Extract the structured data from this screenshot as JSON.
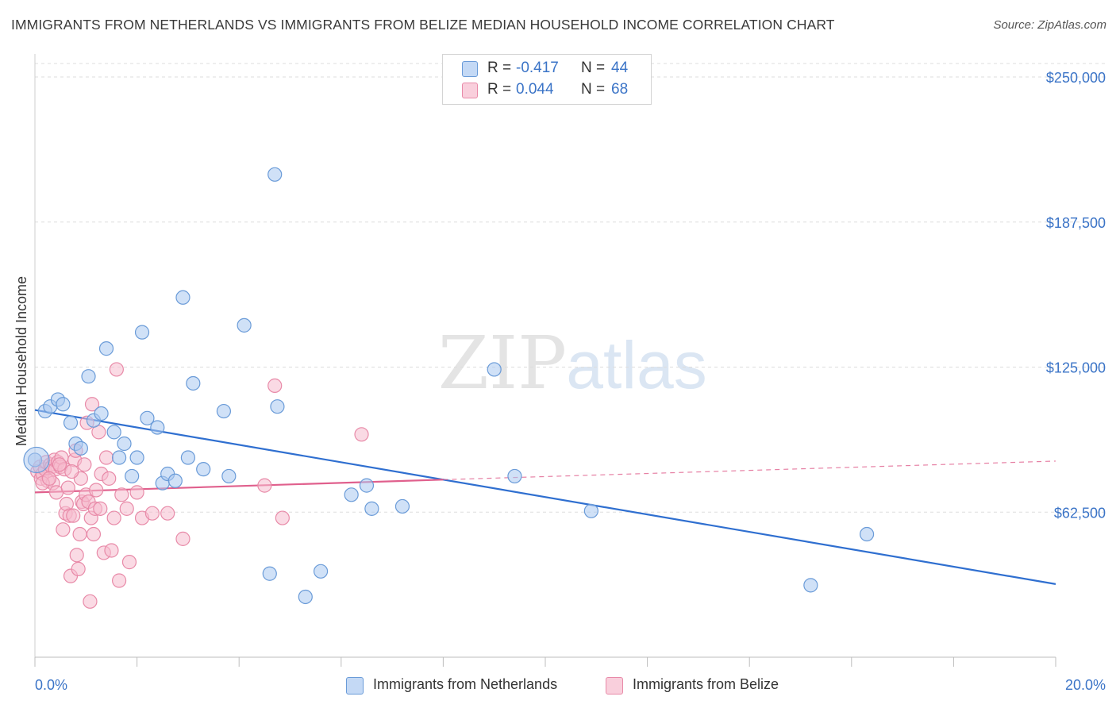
{
  "header": {
    "title": "IMMIGRANTS FROM NETHERLANDS VS IMMIGRANTS FROM BELIZE MEDIAN HOUSEHOLD INCOME CORRELATION CHART",
    "source": "Source: ZipAtlas.com"
  },
  "watermark": {
    "zip": "ZIP",
    "atlas": "atlas"
  },
  "legend": {
    "r_label": "R =",
    "n_label": "N =",
    "netherlands": {
      "r": "-0.417",
      "n": "44"
    },
    "belize": {
      "r": "0.044",
      "n": "68"
    }
  },
  "colors": {
    "netherlands_fill": "#aac8f0",
    "netherlands_stroke": "#6a9bd8",
    "netherlands_line": "#2f6fd0",
    "belize_fill": "#f6bccd",
    "belize_stroke": "#e88aa8",
    "belize_line": "#e0608d",
    "tick_label": "#3b74c7",
    "grid": "#dddddd"
  },
  "chart_data": {
    "type": "scatter",
    "title": "IMMIGRANTS FROM NETHERLANDS VS IMMIGRANTS FROM BELIZE MEDIAN HOUSEHOLD INCOME CORRELATION CHART",
    "xlabel": "",
    "ylabel": "Median Household Income",
    "xlim": [
      0,
      20
    ],
    "ylim": [
      0,
      250000
    ],
    "x_tick_labels": [
      "0.0%",
      "20.0%"
    ],
    "y_ticks": [
      62500,
      125000,
      187500,
      250000
    ],
    "y_tick_labels": [
      "$62,500",
      "$125,000",
      "$187,500",
      "$250,000"
    ],
    "grid": true,
    "legend_position": "top-center",
    "series": [
      {
        "name": "Immigrants from Netherlands",
        "color": "#6a9bd8",
        "points": [
          [
            0.0,
            85000
          ],
          [
            0.2,
            106000
          ],
          [
            0.3,
            108000
          ],
          [
            0.45,
            111000
          ],
          [
            0.55,
            109000
          ],
          [
            0.7,
            101000
          ],
          [
            0.8,
            92000
          ],
          [
            0.9,
            90000
          ],
          [
            1.05,
            121000
          ],
          [
            1.15,
            102000
          ],
          [
            1.3,
            105000
          ],
          [
            1.4,
            133000
          ],
          [
            1.55,
            97000
          ],
          [
            1.65,
            86000
          ],
          [
            1.75,
            92000
          ],
          [
            1.9,
            78000
          ],
          [
            2.0,
            86000
          ],
          [
            2.1,
            140000
          ],
          [
            2.2,
            103000
          ],
          [
            2.4,
            99000
          ],
          [
            2.5,
            75000
          ],
          [
            2.6,
            79000
          ],
          [
            2.75,
            76000
          ],
          [
            2.9,
            155000
          ],
          [
            3.0,
            86000
          ],
          [
            3.1,
            118000
          ],
          [
            3.3,
            81000
          ],
          [
            3.7,
            106000
          ],
          [
            3.8,
            78000
          ],
          [
            4.1,
            143000
          ],
          [
            4.6,
            36000
          ],
          [
            4.7,
            208000
          ],
          [
            4.75,
            108000
          ],
          [
            5.3,
            26000
          ],
          [
            5.6,
            37000
          ],
          [
            6.2,
            70000
          ],
          [
            6.5,
            74000
          ],
          [
            6.6,
            64000
          ],
          [
            7.2,
            65000
          ],
          [
            9.0,
            124000
          ],
          [
            9.4,
            78000
          ],
          [
            10.9,
            63000
          ],
          [
            15.2,
            31000
          ],
          [
            16.3,
            53000
          ]
        ],
        "trend": {
          "x": [
            0,
            20
          ],
          "y": [
            106500,
            31500
          ]
        }
      },
      {
        "name": "Immigrants from Belize",
        "color": "#e88aa8",
        "points": [
          [
            0.05,
            80000
          ],
          [
            0.1,
            82000
          ],
          [
            0.12,
            77000
          ],
          [
            0.15,
            79000
          ],
          [
            0.2,
            81000
          ],
          [
            0.22,
            84000
          ],
          [
            0.25,
            76000
          ],
          [
            0.3,
            83000
          ],
          [
            0.33,
            82000
          ],
          [
            0.35,
            75000
          ],
          [
            0.38,
            85000
          ],
          [
            0.4,
            81000
          ],
          [
            0.42,
            71000
          ],
          [
            0.45,
            84000
          ],
          [
            0.5,
            82000
          ],
          [
            0.52,
            86000
          ],
          [
            0.55,
            55000
          ],
          [
            0.58,
            81000
          ],
          [
            0.6,
            62000
          ],
          [
            0.62,
            66000
          ],
          [
            0.65,
            73000
          ],
          [
            0.68,
            61000
          ],
          [
            0.7,
            35000
          ],
          [
            0.75,
            61000
          ],
          [
            0.78,
            85000
          ],
          [
            0.8,
            89000
          ],
          [
            0.82,
            44000
          ],
          [
            0.85,
            38000
          ],
          [
            0.88,
            53000
          ],
          [
            0.9,
            77000
          ],
          [
            0.92,
            67000
          ],
          [
            0.95,
            66000
          ],
          [
            0.97,
            83000
          ],
          [
            1.0,
            70000
          ],
          [
            1.02,
            101000
          ],
          [
            1.05,
            67000
          ],
          [
            1.08,
            24000
          ],
          [
            1.1,
            60000
          ],
          [
            1.12,
            109000
          ],
          [
            1.15,
            53000
          ],
          [
            1.18,
            64000
          ],
          [
            1.2,
            72000
          ],
          [
            1.25,
            97000
          ],
          [
            1.28,
            64000
          ],
          [
            1.3,
            79000
          ],
          [
            1.35,
            45000
          ],
          [
            1.4,
            86000
          ],
          [
            1.45,
            77000
          ],
          [
            1.5,
            46000
          ],
          [
            1.55,
            60000
          ],
          [
            1.6,
            124000
          ],
          [
            1.65,
            33000
          ],
          [
            1.7,
            70000
          ],
          [
            1.8,
            64000
          ],
          [
            1.85,
            41000
          ],
          [
            2.0,
            71000
          ],
          [
            2.1,
            60000
          ],
          [
            2.3,
            62000
          ],
          [
            2.6,
            62000
          ],
          [
            2.9,
            51000
          ],
          [
            4.5,
            74000
          ],
          [
            4.7,
            117000
          ],
          [
            4.85,
            60000
          ],
          [
            6.4,
            96000
          ],
          [
            0.15,
            75000
          ],
          [
            0.28,
            77000
          ],
          [
            0.48,
            83000
          ],
          [
            0.72,
            80000
          ]
        ],
        "trend": {
          "x": [
            0,
            8
          ],
          "y": [
            71000,
            76500
          ]
        },
        "trend_dashed": {
          "x": [
            8,
            20
          ],
          "y": [
            76500,
            84500
          ]
        }
      }
    ]
  }
}
